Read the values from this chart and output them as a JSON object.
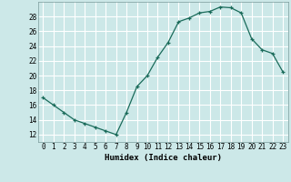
{
  "x": [
    0,
    1,
    2,
    3,
    4,
    5,
    6,
    7,
    8,
    9,
    10,
    11,
    12,
    13,
    14,
    15,
    16,
    17,
    18,
    19,
    20,
    21,
    22,
    23
  ],
  "y": [
    17,
    16,
    15,
    14,
    13.5,
    13,
    12.5,
    12,
    15,
    18.5,
    20,
    22.5,
    24.5,
    27.3,
    27.8,
    28.5,
    28.7,
    29.3,
    29.2,
    28.5,
    25,
    23.5,
    23,
    20.5
  ],
  "line_color": "#1a6b5a",
  "marker": "+",
  "bg_color": "#cce8e8",
  "grid_color": "#ffffff",
  "xlabel": "Humidex (Indice chaleur)",
  "xlim": [
    -0.5,
    23.5
  ],
  "ylim": [
    11,
    30
  ],
  "yticks": [
    12,
    14,
    16,
    18,
    20,
    22,
    24,
    26,
    28
  ],
  "xticks": [
    0,
    1,
    2,
    3,
    4,
    5,
    6,
    7,
    8,
    9,
    10,
    11,
    12,
    13,
    14,
    15,
    16,
    17,
    18,
    19,
    20,
    21,
    22,
    23
  ],
  "xtick_labels": [
    "0",
    "1",
    "2",
    "3",
    "4",
    "5",
    "6",
    "7",
    "8",
    "9",
    "10",
    "11",
    "12",
    "13",
    "14",
    "15",
    "16",
    "17",
    "18",
    "19",
    "20",
    "21",
    "22",
    "23"
  ],
  "tick_fontsize": 5.5,
  "label_fontsize": 6.5
}
